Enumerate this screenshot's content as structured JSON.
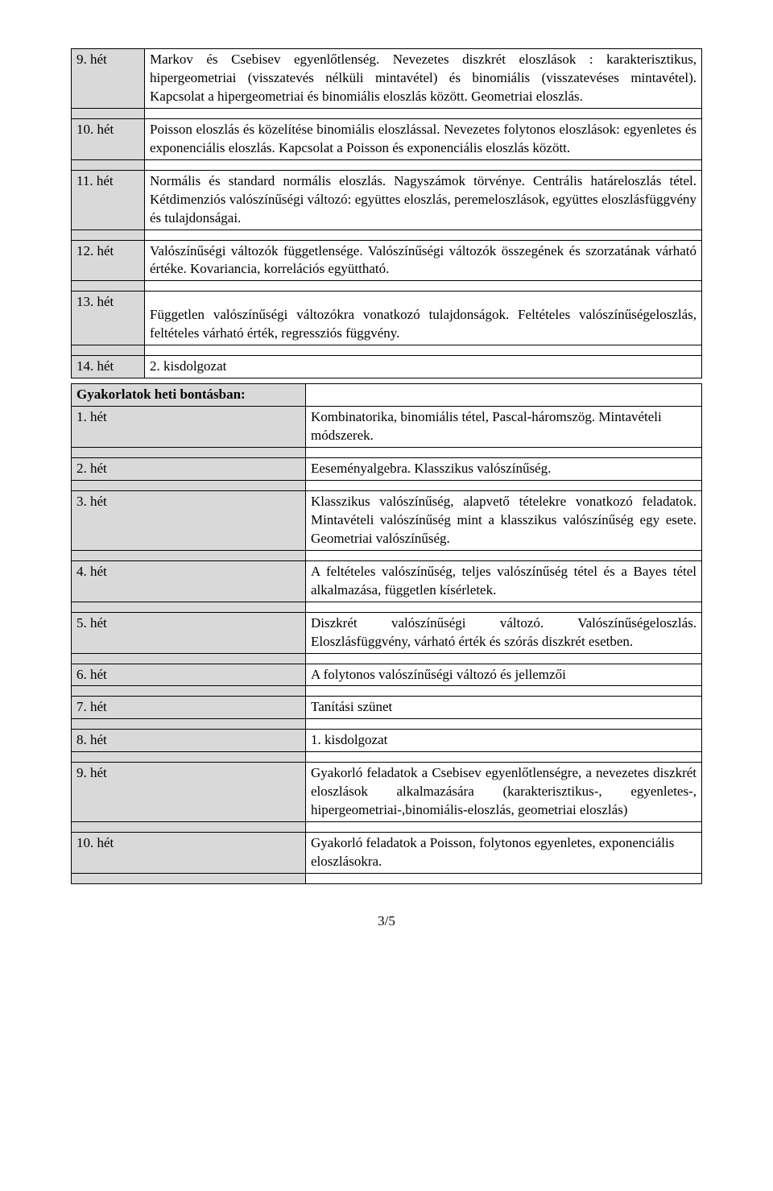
{
  "table1": {
    "rows": [
      {
        "week": "9. hét",
        "text": "Markov és Csebisev egyenlőtlenség. Nevezetes diszkrét eloszlások : karakterisztikus, hipergeometriai (visszatevés nélküli mintavétel) és binomiális (visszatevéses mintavétel). Kapcsolat a hipergeometriai és binomiális eloszlás között. Geometriai eloszlás."
      },
      {
        "week": "10. hét",
        "text": "Poisson eloszlás és közelítése binomiális eloszlással. Nevezetes folytonos eloszlások: egyenletes és exponenciális eloszlás. Kapcsolat a Poisson és exponenciális eloszlás között."
      },
      {
        "week": "11. hét",
        "text": "Normális és standard normális eloszlás. Nagyszámok törvénye. Centrális határeloszlás tétel. Kétdimenziós valószínűségi változó: együttes eloszlás, peremeloszlások, együttes eloszlásfüggvény és tulajdonságai."
      },
      {
        "week": "12. hét",
        "text": "Valószínűségi változók függetlensége. Valószínűségi változók összegének és szorzatának várható értéke. Kovariancia, korrelációs együttható."
      },
      {
        "week": "13. hét",
        "text": "Független valószínűségi változókra vonatkozó tulajdonságok. Feltételes valószínűségeloszlás, feltételes várható érték, regressziós függvény.",
        "pad": true
      },
      {
        "week": "14. hét",
        "text": "2. kisdolgozat",
        "nojustify": true
      }
    ]
  },
  "table2": {
    "header": "Gyakorlatok heti bontásban:",
    "rows": [
      {
        "week": "1. hét",
        "text": "Kombinatorika, binomiális tétel, Pascal-háromszög. Mintavételi módszerek.",
        "nojustify": true
      },
      {
        "week": "2. hét",
        "text": "Eeseményalgebra. Klasszikus valószínűség.",
        "nojustify": true
      },
      {
        "week": "3. hét",
        "text": "Klasszikus valószínűség, alapvető tételekre vonatkozó feladatok. Mintavételi valószínűség mint a klasszikus valószínűség egy esete. Geometriai valószínűség."
      },
      {
        "week": "4. hét",
        "text": "A feltételes valószínűség, teljes valószínűség tétel és a Bayes tétel alkalmazása, független kísérletek."
      },
      {
        "week": "5. hét",
        "text": "Diszkrét valószínűségi változó. Valószínűségeloszlás. Eloszlásfüggvény, várható érték és szórás diszkrét esetben."
      },
      {
        "week": "6. hét",
        "text": "A folytonos valószínűségi változó és jellemzői",
        "nojustify": true
      },
      {
        "week": "7. hét",
        "text": "Tanítási szünet",
        "nojustify": true
      },
      {
        "week": "8. hét",
        "text": "1. kisdolgozat",
        "nojustify": true
      },
      {
        "week": "9. hét",
        "text": "Gyakorló feladatok a Csebisev egyenlőtlenségre, a nevezetes diszkrét eloszlások alkalmazására (karakterisztikus-, egyenletes-, hipergeometriai-,binomiális-eloszlás, geometriai eloszlás)"
      },
      {
        "week": "10. hét",
        "text": "Gyakorló feladatok a Poisson, folytonos egyenletes, exponenciális eloszlásokra.",
        "nojustify": true
      }
    ]
  },
  "footer": "3/5"
}
